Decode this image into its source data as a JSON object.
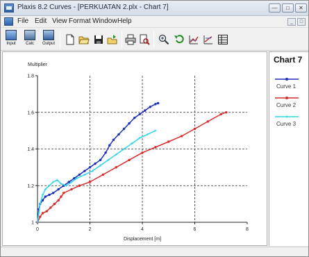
{
  "window": {
    "title": "Plaxis 8.2 Curves - [PERKUATAN 2.plx - Chart 7]"
  },
  "menu": {
    "items": [
      "File",
      "Edit",
      "View",
      "Format",
      "Window",
      "Help"
    ]
  },
  "toolbar": {
    "input_label": "Input",
    "calc_label": "Calc",
    "output_label": "Output"
  },
  "icons": {
    "app": "app-icon",
    "new": "new-file-icon",
    "open": "open-folder-icon",
    "save": "save-icon",
    "export": "export-icon",
    "print": "print-icon",
    "print_preview": "print-preview-icon",
    "zoom": "zoom-icon",
    "undo": "undo-icon",
    "chart_settings": "chart-settings-icon",
    "curve_settings": "curve-settings-icon",
    "table": "table-icon"
  },
  "legend": {
    "title": "Chart 7",
    "entries": [
      {
        "name": "Curve 1",
        "color": "#1c2fb8"
      },
      {
        "name": "Curve 2",
        "color": "#d92a2a"
      },
      {
        "name": "Curve 3",
        "color": "#2fd4ee"
      }
    ]
  },
  "chart_data": {
    "type": "line",
    "title": "",
    "xlabel": "Displacement [m]",
    "ylabel": "Multiplier",
    "xlim": [
      0,
      8
    ],
    "ylim": [
      1,
      1.8
    ],
    "xticks": [
      0,
      2,
      4,
      6,
      8
    ],
    "yticks": [
      1,
      1.2,
      1.4,
      1.6,
      1.8
    ],
    "xtick_labels": [
      "0",
      "2",
      "4",
      "6",
      "8"
    ],
    "ytick_labels": [
      "1",
      "1.2",
      "1.4",
      "1.6",
      "1.8"
    ],
    "grid": true,
    "grid_style": "dashed",
    "legend_position": "right",
    "series": [
      {
        "name": "Curve 1",
        "color": "#1c2fb8",
        "x": [
          0,
          0.05,
          0.1,
          0.2,
          0.3,
          0.45,
          0.6,
          0.8,
          1.0,
          1.2,
          1.4,
          1.6,
          1.8,
          2.0,
          2.2,
          2.4,
          2.6,
          2.75,
          2.9,
          3.1,
          3.3,
          3.5,
          3.7,
          3.9,
          4.1,
          4.3,
          4.5,
          4.6
        ],
        "y": [
          1.0,
          1.07,
          1.1,
          1.12,
          1.14,
          1.15,
          1.16,
          1.18,
          1.2,
          1.22,
          1.24,
          1.26,
          1.28,
          1.3,
          1.32,
          1.34,
          1.38,
          1.42,
          1.45,
          1.48,
          1.51,
          1.54,
          1.57,
          1.59,
          1.61,
          1.63,
          1.645,
          1.65
        ]
      },
      {
        "name": "Curve 2",
        "color": "#d92a2a",
        "x": [
          0,
          0.1,
          0.2,
          0.35,
          0.5,
          0.65,
          0.8,
          0.9,
          1.0,
          1.3,
          1.6,
          2.0,
          2.5,
          3.0,
          3.5,
          4.0,
          4.5,
          5.0,
          5.5,
          6.0,
          6.5,
          7.0,
          7.2
        ],
        "y": [
          1.0,
          1.03,
          1.05,
          1.06,
          1.08,
          1.1,
          1.12,
          1.14,
          1.16,
          1.18,
          1.2,
          1.22,
          1.26,
          1.3,
          1.34,
          1.38,
          1.41,
          1.44,
          1.47,
          1.51,
          1.55,
          1.59,
          1.6
        ]
      },
      {
        "name": "Curve 3",
        "color": "#2fd4ee",
        "x": [
          0,
          0.05,
          0.1,
          0.2,
          0.3,
          0.45,
          0.6,
          0.75,
          0.9,
          1.1,
          1.3,
          1.5,
          1.8,
          2.1,
          2.4,
          2.7,
          3.0,
          3.3,
          3.6,
          3.9,
          4.2,
          4.5
        ],
        "y": [
          1.0,
          1.05,
          1.1,
          1.15,
          1.18,
          1.2,
          1.22,
          1.23,
          1.21,
          1.2,
          1.22,
          1.24,
          1.26,
          1.28,
          1.31,
          1.34,
          1.37,
          1.4,
          1.43,
          1.46,
          1.48,
          1.5
        ]
      }
    ]
  }
}
